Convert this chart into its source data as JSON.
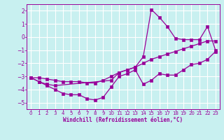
{
  "xlabel": "Windchill (Refroidissement éolien,°C)",
  "bg_color": "#c8f0f0",
  "line_color": "#990099",
  "grid_color": "#b0d8d8",
  "xlim": [
    -0.5,
    23.5
  ],
  "ylim": [
    -5.5,
    2.5
  ],
  "xticks": [
    0,
    1,
    2,
    3,
    4,
    5,
    6,
    7,
    8,
    9,
    10,
    11,
    12,
    13,
    14,
    15,
    16,
    17,
    18,
    19,
    20,
    21,
    22,
    23
  ],
  "yticks": [
    -5,
    -4,
    -3,
    -2,
    -1,
    0,
    1,
    2
  ],
  "series": [
    {
      "x": [
        0,
        1,
        2,
        3,
        4,
        5,
        6,
        7,
        8,
        9,
        10,
        11,
        12,
        13,
        14,
        15,
        16,
        17,
        18,
        19,
        20,
        21,
        22,
        23
      ],
      "y": [
        -3.1,
        -3.4,
        -3.7,
        -4.0,
        -4.3,
        -4.4,
        -4.4,
        -4.7,
        -4.8,
        -4.6,
        -3.8,
        -3.0,
        -2.8,
        -2.5,
        -3.6,
        -3.3,
        -2.8,
        -2.9,
        -2.9,
        -2.5,
        -2.1,
        -2.0,
        -1.7,
        -1.1
      ]
    },
    {
      "x": [
        0,
        1,
        2,
        3,
        4,
        5,
        6,
        7,
        8,
        9,
        10,
        11,
        12,
        13,
        14,
        15,
        16,
        17,
        18,
        19,
        20,
        21,
        22,
        23
      ],
      "y": [
        -3.1,
        -3.1,
        -3.2,
        -3.3,
        -3.4,
        -3.4,
        -3.4,
        -3.5,
        -3.5,
        -3.3,
        -3.0,
        -2.7,
        -2.5,
        -2.3,
        -2.0,
        -1.7,
        -1.5,
        -1.3,
        -1.1,
        -0.9,
        -0.7,
        -0.5,
        -0.3,
        -0.3
      ]
    },
    {
      "x": [
        0,
        1,
        2,
        3,
        10,
        11,
        12,
        13,
        14,
        15,
        16,
        17,
        18,
        19,
        20,
        21,
        22,
        23
      ],
      "y": [
        -3.1,
        -3.4,
        -3.6,
        -3.7,
        -3.3,
        -2.7,
        -2.5,
        -2.3,
        -1.5,
        2.1,
        1.5,
        0.8,
        -0.1,
        -0.2,
        -0.2,
        -0.2,
        0.8,
        -1.0
      ]
    }
  ]
}
